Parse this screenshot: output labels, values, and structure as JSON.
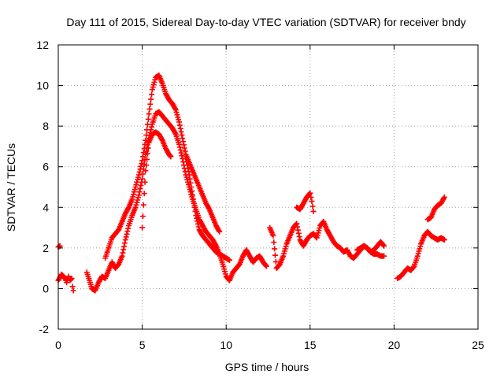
{
  "chart_data": {
    "type": "scatter",
    "title": "Day 111 of 2015, Sidereal Day-to-day VTEC variation (SDTVAR) for receiver bndy",
    "xlabel": "GPS time / hours",
    "ylabel": "SDTVAR / TECUs",
    "xlim": [
      0,
      25
    ],
    "ylim": [
      -2,
      12
    ],
    "xticks": [
      0,
      5,
      10,
      15,
      20,
      25
    ],
    "yticks": [
      -2,
      0,
      2,
      4,
      6,
      8,
      10,
      12
    ],
    "xtick_labels": [
      "0",
      "5",
      "10",
      "15",
      "20",
      "25"
    ],
    "ytick_labels": [
      "-2",
      "0",
      "2",
      "4",
      "6",
      "8",
      "10",
      "12"
    ],
    "grid": true,
    "marker": "+",
    "color": "#ff0000",
    "series": [
      {
        "name": "seg-a",
        "x": [
          0.0,
          0.1
        ],
        "y": [
          2.05,
          2.1
        ]
      },
      {
        "name": "seg-b",
        "x": [
          0.0,
          0.2,
          0.4,
          0.5,
          0.6,
          0.7,
          0.8,
          0.85,
          0.9
        ],
        "y": [
          0.4,
          0.7,
          0.5,
          0.3,
          0.6,
          0.4,
          0.5,
          0.1,
          -0.1
        ]
      },
      {
        "name": "seg-c",
        "x": [
          1.7,
          1.9,
          2.0,
          2.2,
          2.4,
          2.6,
          2.8,
          3.0,
          3.2,
          3.4,
          3.6,
          3.8,
          4.0,
          4.2,
          4.4,
          4.6,
          4.8,
          5.0,
          5.2,
          5.4,
          5.6,
          5.8,
          6.0,
          6.2,
          6.4,
          6.6,
          6.8,
          7.0,
          7.2,
          7.4,
          7.6,
          7.8,
          8.0,
          8.2,
          8.4,
          8.6,
          8.8,
          9.0,
          9.2,
          9.4,
          9.6,
          9.8,
          10.0,
          10.2,
          10.4,
          10.6,
          10.8,
          11.0,
          11.2,
          11.4,
          11.6,
          11.8,
          12.0,
          12.2,
          12.4
        ],
        "y": [
          0.8,
          0.3,
          0.0,
          -0.1,
          0.3,
          0.6,
          0.5,
          0.9,
          1.3,
          1.0,
          1.2,
          1.6,
          2.4,
          3.1,
          3.6,
          4.0,
          4.6,
          5.4,
          6.6,
          7.4,
          8.1,
          8.6,
          8.7,
          8.5,
          8.3,
          8.1,
          7.9,
          7.6,
          7.1,
          6.4,
          5.6,
          5.0,
          4.4,
          3.9,
          3.4,
          3.1,
          2.8,
          2.6,
          2.4,
          2.1,
          1.7,
          1.2,
          0.6,
          0.4,
          0.8,
          1.0,
          1.2,
          1.6,
          1.9,
          1.6,
          1.3,
          1.5,
          1.6,
          1.3,
          1.1
        ]
      },
      {
        "name": "seg-d",
        "x": [
          2.8,
          3.0,
          3.2,
          3.4,
          3.6,
          3.8,
          4.0,
          4.2,
          4.4,
          4.6,
          4.8,
          5.0,
          5.2,
          5.4,
          5.6,
          5.8,
          6.0,
          6.2,
          6.4,
          6.6,
          6.8,
          7.0,
          7.2,
          7.4,
          7.6,
          7.8,
          8.0,
          8.2,
          8.4,
          8.6,
          8.8,
          9.0,
          9.2,
          9.4,
          9.6
        ],
        "y": [
          1.5,
          2.0,
          2.5,
          2.7,
          2.9,
          3.3,
          3.7,
          4.0,
          4.4,
          5.0,
          5.6,
          6.3,
          7.3,
          8.6,
          9.8,
          10.4,
          10.5,
          10.1,
          9.6,
          9.3,
          9.1,
          8.8,
          8.2,
          7.4,
          6.6,
          6.2,
          5.8,
          5.4,
          5.0,
          4.6,
          4.2,
          3.9,
          3.5,
          3.1,
          2.8
        ]
      },
      {
        "name": "seg-e",
        "x": [
          5.0,
          5.2,
          5.4,
          5.6,
          5.8,
          6.0,
          6.2,
          6.4,
          6.6,
          6.7
        ],
        "y": [
          3.0,
          5.8,
          7.2,
          7.6,
          7.7,
          7.6,
          7.3,
          6.9,
          6.6,
          6.5
        ]
      },
      {
        "name": "seg-f",
        "x": [
          7.6,
          7.8,
          8.0,
          8.2,
          8.4,
          8.6,
          8.8,
          9.0,
          9.2,
          9.4,
          9.6,
          9.8,
          10.0,
          10.2
        ],
        "y": [
          6.4,
          5.6,
          4.6,
          3.6,
          2.9,
          2.6,
          2.4,
          2.2,
          2.0,
          1.8,
          1.7,
          1.6,
          1.5,
          1.4
        ]
      },
      {
        "name": "seg-g",
        "x": [
          12.6,
          12.8,
          13.0,
          13.2,
          13.4,
          13.6,
          13.8,
          14.0,
          14.2,
          14.4,
          14.6,
          14.8,
          15.0,
          15.2,
          15.4,
          15.6,
          15.8,
          16.0,
          16.2,
          16.4,
          16.6,
          16.8,
          17.0,
          17.2,
          17.4,
          17.6,
          17.8,
          18.0,
          18.2,
          18.4,
          18.6,
          18.8,
          19.0,
          19.2,
          19.4
        ],
        "y": [
          3.0,
          2.6,
          1.0,
          1.2,
          1.6,
          2.2,
          2.6,
          3.0,
          3.2,
          2.4,
          2.1,
          2.4,
          2.6,
          2.7,
          2.5,
          3.1,
          3.3,
          2.9,
          2.6,
          2.3,
          2.1,
          2.0,
          1.8,
          1.9,
          1.6,
          1.5,
          1.7,
          1.9,
          2.1,
          2.0,
          1.8,
          1.7,
          1.7,
          1.6,
          1.6
        ]
      },
      {
        "name": "seg-h",
        "x": [
          14.2,
          14.4,
          14.6,
          14.8,
          15.0,
          15.1,
          15.2
        ],
        "y": [
          4.0,
          3.9,
          4.2,
          4.5,
          4.7,
          4.3,
          3.8
        ]
      },
      {
        "name": "seg-i",
        "x": [
          17.8,
          18.0,
          18.2,
          18.4,
          18.6,
          18.8,
          19.0,
          19.2,
          19.4
        ],
        "y": [
          1.9,
          2.0,
          2.1,
          2.0,
          1.8,
          1.9,
          2.1,
          2.3,
          2.1
        ]
      },
      {
        "name": "seg-j",
        "x": [
          20.2,
          20.4,
          20.6,
          20.8,
          21.0,
          21.2,
          21.4,
          21.6,
          21.8,
          22.0,
          22.2,
          22.4,
          22.6,
          22.8,
          23.0
        ],
        "y": [
          0.5,
          0.6,
          0.8,
          1.0,
          0.9,
          1.1,
          1.6,
          2.2,
          2.6,
          2.8,
          2.6,
          2.5,
          2.4,
          2.5,
          2.4
        ]
      },
      {
        "name": "seg-k",
        "x": [
          22.0,
          22.2,
          22.4,
          22.6,
          22.8,
          23.0
        ],
        "y": [
          3.4,
          3.5,
          3.9,
          4.1,
          4.2,
          4.5
        ]
      }
    ]
  }
}
